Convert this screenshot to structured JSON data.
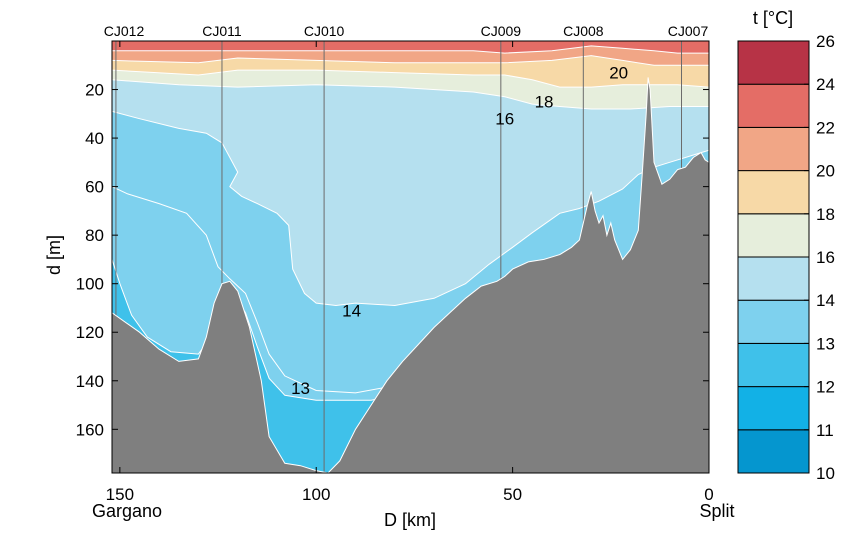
{
  "chart_data": {
    "type": "contour-section",
    "xlabel": "D [km]",
    "ylabel": "d [m]",
    "xlim": [
      152,
      0
    ],
    "ylim": [
      0,
      178
    ],
    "x_ticks": [
      150,
      100,
      50,
      0
    ],
    "y_ticks": [
      20,
      40,
      60,
      80,
      100,
      120,
      140,
      160
    ],
    "endpoints": [
      {
        "x": 150,
        "name": "Gargano"
      },
      {
        "x": 0,
        "name": "Split"
      }
    ],
    "stations": [
      {
        "name": "CJ012",
        "x": 151
      },
      {
        "name": "CJ011",
        "x": 124
      },
      {
        "name": "CJ010",
        "x": 98
      },
      {
        "name": "CJ009",
        "x": 53
      },
      {
        "name": "CJ008",
        "x": 32
      },
      {
        "name": "CJ007",
        "x": 7
      }
    ],
    "colorbar": {
      "title": "t [°C]",
      "levels": [
        10,
        11,
        12,
        13,
        14,
        16,
        18,
        20,
        22,
        24,
        26
      ],
      "colors": [
        "#0596cf",
        "#12b1e6",
        "#3fc1ea",
        "#7ed1ee",
        "#b5e0ef",
        "#e6eedc",
        "#f7d9a7",
        "#f1a686",
        "#e46d66",
        "#b73346"
      ]
    },
    "contour_labels": [
      {
        "text": "20",
        "x": 23,
        "y": 13
      },
      {
        "text": "18",
        "x": 42,
        "y": 25
      },
      {
        "text": "16",
        "x": 52,
        "y": 32
      },
      {
        "text": "14",
        "x": 91,
        "y": 111
      },
      {
        "text": "13",
        "x": 104,
        "y": 143
      }
    ],
    "bottom_depth": [
      [
        152,
        112
      ],
      [
        145,
        120
      ],
      [
        140,
        127
      ],
      [
        135,
        132
      ],
      [
        130,
        131
      ],
      [
        128,
        122
      ],
      [
        126,
        108
      ],
      [
        124,
        100
      ],
      [
        122,
        99
      ],
      [
        120,
        103
      ],
      [
        117,
        118
      ],
      [
        114,
        140
      ],
      [
        112,
        163
      ],
      [
        108,
        174
      ],
      [
        104,
        175
      ],
      [
        100,
        177
      ],
      [
        97,
        178
      ],
      [
        94,
        173
      ],
      [
        90,
        160
      ],
      [
        86,
        150
      ],
      [
        82,
        140
      ],
      [
        78,
        132
      ],
      [
        74,
        125
      ],
      [
        70,
        118
      ],
      [
        66,
        112
      ],
      [
        62,
        106
      ],
      [
        58,
        101
      ],
      [
        54,
        99
      ],
      [
        52,
        97
      ],
      [
        50,
        94
      ],
      [
        46,
        91
      ],
      [
        42,
        90
      ],
      [
        38,
        88
      ],
      [
        35,
        85
      ],
      [
        33,
        82
      ],
      [
        31,
        68
      ],
      [
        30,
        62
      ],
      [
        29,
        70
      ],
      [
        28,
        75
      ],
      [
        27,
        72
      ],
      [
        26,
        80
      ],
      [
        25,
        75
      ],
      [
        24,
        82
      ],
      [
        22,
        90
      ],
      [
        20,
        86
      ],
      [
        18,
        78
      ],
      [
        17,
        55
      ],
      [
        16,
        30
      ],
      [
        15.5,
        15
      ],
      [
        15,
        20
      ],
      [
        14,
        50
      ],
      [
        12,
        59
      ],
      [
        10,
        57
      ],
      [
        8,
        53
      ],
      [
        6,
        52
      ],
      [
        4,
        48
      ],
      [
        2,
        46
      ],
      [
        1,
        49
      ],
      [
        0,
        50
      ],
      [
        0,
        178
      ],
      [
        152,
        178
      ]
    ],
    "isotherms": {
      "t22": [
        [
          152,
          4
        ],
        [
          120,
          4
        ],
        [
          90,
          4
        ],
        [
          60,
          4
        ],
        [
          52,
          5
        ],
        [
          40,
          4
        ],
        [
          30,
          2
        ],
        [
          22,
          3
        ],
        [
          14,
          4
        ],
        [
          8,
          5
        ],
        [
          0,
          5
        ]
      ],
      "t20": [
        [
          152,
          8
        ],
        [
          130,
          9
        ],
        [
          120,
          7
        ],
        [
          100,
          8
        ],
        [
          80,
          9
        ],
        [
          60,
          9
        ],
        [
          52,
          9
        ],
        [
          40,
          8
        ],
        [
          30,
          6
        ],
        [
          22,
          8
        ],
        [
          14,
          10
        ],
        [
          8,
          10
        ],
        [
          0,
          10
        ]
      ],
      "t18": [
        [
          152,
          12
        ],
        [
          130,
          14
        ],
        [
          120,
          12
        ],
        [
          100,
          12
        ],
        [
          80,
          13
        ],
        [
          60,
          14
        ],
        [
          52,
          14
        ],
        [
          45,
          16
        ],
        [
          38,
          19
        ],
        [
          30,
          19
        ],
        [
          22,
          18
        ],
        [
          15,
          18
        ],
        [
          8,
          18
        ],
        [
          0,
          19
        ]
      ],
      "t16": [
        [
          152,
          16
        ],
        [
          135,
          18
        ],
        [
          120,
          19
        ],
        [
          100,
          18
        ],
        [
          80,
          19
        ],
        [
          60,
          21
        ],
        [
          52,
          23
        ],
        [
          45,
          26
        ],
        [
          38,
          27
        ],
        [
          30,
          28
        ],
        [
          20,
          28
        ],
        [
          10,
          27
        ],
        [
          0,
          27
        ]
      ],
      "t14": [
        [
          152,
          29
        ],
        [
          145,
          32
        ],
        [
          135,
          36
        ],
        [
          128,
          38
        ],
        [
          124,
          42
        ],
        [
          120,
          54
        ],
        [
          122,
          60
        ],
        [
          119,
          64
        ],
        [
          115,
          67
        ],
        [
          110,
          71
        ],
        [
          107,
          76
        ],
        [
          106,
          94
        ],
        [
          103,
          104
        ],
        [
          100,
          108
        ],
        [
          95,
          109
        ],
        [
          90,
          108
        ],
        [
          80,
          109
        ],
        [
          70,
          106
        ],
        [
          62,
          100
        ],
        [
          56,
          92
        ],
        [
          50,
          85
        ],
        [
          45,
          79
        ],
        [
          38,
          71
        ],
        [
          33,
          69
        ],
        [
          28,
          66
        ],
        [
          22,
          61
        ],
        [
          18,
          55
        ],
        [
          14,
          52
        ],
        [
          10,
          50
        ],
        [
          6,
          48
        ],
        [
          2,
          46
        ],
        [
          0,
          45
        ]
      ],
      "t13": [
        [
          152,
          60
        ],
        [
          148,
          63
        ],
        [
          140,
          67
        ],
        [
          133,
          71
        ],
        [
          128,
          80
        ],
        [
          125,
          93
        ],
        [
          122,
          98
        ],
        [
          118,
          104
        ],
        [
          115,
          116
        ],
        [
          112,
          129
        ],
        [
          108,
          138
        ],
        [
          100,
          144
        ],
        [
          90,
          145
        ],
        [
          80,
          142
        ],
        [
          72,
          135
        ],
        [
          66,
          125
        ],
        [
          60,
          113
        ],
        [
          55,
          103
        ],
        [
          52,
          98
        ]
      ],
      "t12": [
        [
          152,
          90
        ],
        [
          150,
          100
        ],
        [
          147,
          113
        ],
        [
          143,
          122
        ],
        [
          137,
          128
        ],
        [
          130,
          129
        ],
        [
          125,
          118
        ],
        [
          122,
          107
        ],
        [
          121,
          104
        ],
        [
          118,
          112
        ],
        [
          115,
          126
        ],
        [
          112,
          139
        ],
        [
          108,
          146
        ],
        [
          100,
          148
        ],
        [
          92,
          148
        ],
        [
          86,
          148
        ],
        [
          80,
          146
        ]
      ]
    }
  }
}
